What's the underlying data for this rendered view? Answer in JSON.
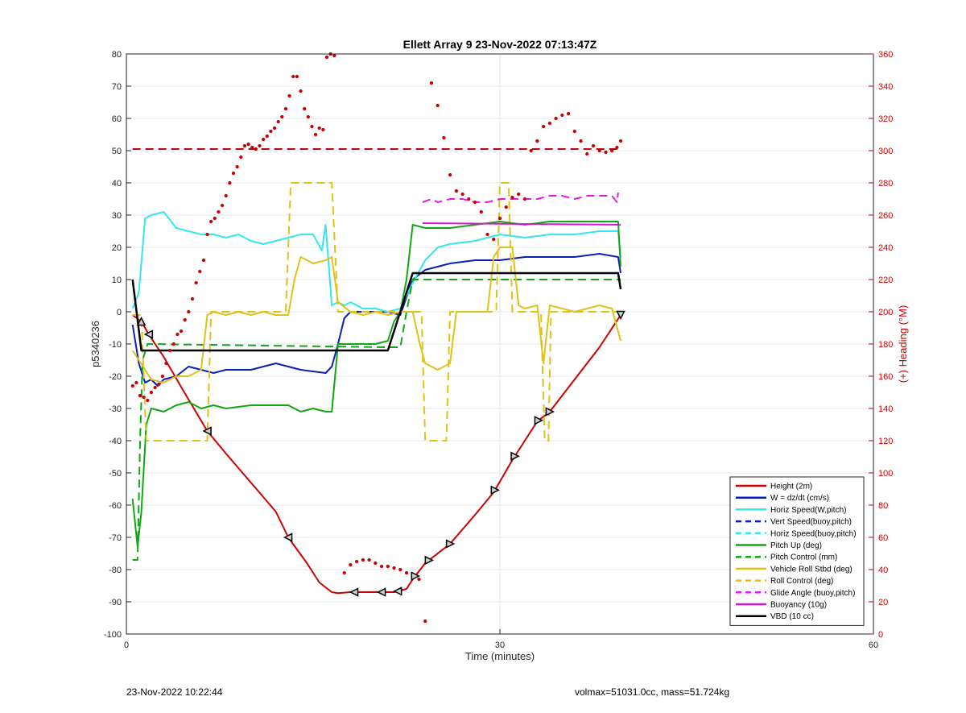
{
  "footer": {
    "left": "23-Nov-2022 10:22:44",
    "right": "volmax=51031.0cc, mass=51.724kg"
  },
  "chart_data": {
    "type": "line",
    "title": "Ellett Array 9 23-Nov-2022 07:13:47Z",
    "xlabel": "Time (minutes)",
    "ylabel": "p5340236",
    "ylabel_right": "(+) Heading (°M)",
    "xlim": [
      0,
      60
    ],
    "ylim": [
      -100,
      80
    ],
    "ylim_right": [
      0,
      360
    ],
    "x_ticks": [
      0,
      30,
      60
    ],
    "y_ticks": [
      -100,
      -90,
      -80,
      -70,
      -60,
      -50,
      -40,
      -30,
      -20,
      -10,
      0,
      10,
      20,
      30,
      40,
      50,
      60,
      70,
      80
    ],
    "y_ticks_right": [
      0,
      20,
      40,
      60,
      80,
      100,
      120,
      140,
      160,
      180,
      200,
      220,
      240,
      260,
      280,
      300,
      320,
      340,
      360
    ],
    "grid": true,
    "legend_position": "bottom-right",
    "series": [
      {
        "name": "Height (2m)",
        "axis": "left",
        "color": "#cc0000",
        "style": "solid",
        "width": 2,
        "x": [
          0.5,
          1.2,
          1.8,
          3,
          4.5,
          6.5,
          8,
          10,
          12,
          13,
          14.5,
          15.5,
          16.5,
          17,
          18,
          20,
          21.5,
          22.5,
          23,
          24,
          26,
          28,
          29.5,
          31,
          33,
          34,
          36,
          38,
          39.7
        ],
        "values": [
          -1,
          -3,
          -7,
          -14,
          -24,
          -37,
          -44,
          -53,
          -62,
          -70,
          -78,
          -84,
          -87,
          -87.3,
          -87,
          -87,
          -87,
          -86,
          -83,
          -78,
          -72,
          -63,
          -56,
          -46,
          -34,
          -31,
          -21,
          -11,
          -1
        ]
      },
      {
        "name": "W = dz/dt (cm/s)",
        "axis": "left",
        "color": "#0a1fb8",
        "style": "solid",
        "width": 2,
        "x": [
          0.5,
          1,
          1.5,
          2,
          2.5,
          3,
          4,
          5,
          6,
          7,
          8,
          10,
          12,
          14,
          16,
          16.5,
          17,
          17.5,
          18,
          19,
          21,
          22,
          23,
          24,
          26,
          28,
          30,
          32,
          34,
          36,
          38,
          39.5,
          39.7
        ],
        "values": [
          -4,
          -16,
          -22,
          -21,
          -23,
          -21,
          -20,
          -17,
          -18,
          -19,
          -18,
          -18,
          -16,
          -18,
          -19,
          -17,
          -10,
          -2,
          0,
          0,
          0,
          -1,
          10,
          13,
          15,
          16,
          16,
          17,
          17,
          17,
          18,
          17,
          12
        ]
      },
      {
        "name": "Horiz Speed(W,pitch)",
        "axis": "left",
        "color": "#33e6ef",
        "style": "solid",
        "width": 2,
        "x": [
          0.5,
          1,
          1.5,
          2,
          3,
          4,
          5,
          6,
          7,
          8,
          9,
          10,
          11,
          12,
          13,
          14,
          15,
          15.7,
          16,
          16.5,
          17,
          17.5,
          18,
          19,
          20,
          21,
          22,
          23,
          24,
          25,
          26,
          28,
          30,
          32,
          34,
          36,
          38,
          39.5,
          39.7
        ],
        "values": [
          1,
          6,
          29,
          30,
          31,
          26,
          25,
          24,
          24,
          23,
          24,
          22,
          21,
          22,
          23,
          24,
          24,
          19,
          27,
          2,
          3,
          2,
          3,
          1,
          1,
          0,
          1,
          9,
          16,
          20,
          21,
          22,
          24,
          23,
          24,
          24,
          25,
          25,
          17
        ]
      },
      {
        "name": "Vert Speed(buoy,pitch)",
        "axis": "left",
        "color": "#0a1fb8",
        "style": "dashed",
        "width": 2,
        "x": [],
        "values": []
      },
      {
        "name": "Horiz Speed(buoy,pitch)",
        "axis": "left",
        "color": "#33e6ef",
        "style": "dashed",
        "width": 2,
        "x": [],
        "values": []
      },
      {
        "name": "Pitch Up (deg)",
        "axis": "left",
        "color": "#12a612",
        "style": "solid",
        "width": 2,
        "x": [
          0.5,
          0.9,
          1.2,
          1.6,
          2,
          3,
          4,
          5,
          6,
          7,
          8,
          10,
          12,
          13,
          14,
          15,
          16,
          16.5,
          17,
          18,
          19,
          20,
          21,
          21.5,
          22,
          22.5,
          23,
          24,
          26,
          28,
          30,
          32,
          34,
          36,
          38,
          39.5,
          39.7
        ],
        "values": [
          -58,
          -73,
          -62,
          -35,
          -30,
          -31,
          -29,
          -28,
          -30,
          -29,
          -30,
          -29,
          -29,
          -29,
          -31,
          -30,
          -31,
          -31,
          -10,
          -10,
          -10,
          -10,
          -9,
          -3,
          0,
          10,
          27,
          26,
          26,
          27,
          28,
          27,
          28,
          28,
          28,
          28,
          14
        ]
      },
      {
        "name": "Pitch Control (mm)",
        "axis": "left",
        "color": "#12a612",
        "style": "dashed",
        "width": 2,
        "x": [
          0.5,
          0.9,
          1.1,
          1.3,
          1.7,
          21,
          22,
          22.5,
          23,
          39.7
        ],
        "values": [
          -77,
          -77,
          -40,
          -15,
          -10,
          -11,
          -11,
          0,
          10,
          10
        ]
      },
      {
        "name": "Vehicle Roll Stbd (deg)",
        "axis": "left",
        "color": "#e0c11a",
        "style": "solid",
        "width": 2,
        "x": [
          0.5,
          1,
          1.5,
          2,
          3,
          4,
          5,
          6,
          6.5,
          7,
          8,
          9,
          10,
          11,
          12,
          13,
          13.5,
          14,
          15,
          16,
          16.5,
          17,
          18,
          19,
          20,
          21,
          22,
          23,
          23.5,
          24,
          25,
          26,
          26.5,
          27,
          28,
          29,
          29.5,
          30,
          31,
          31.5,
          32,
          33,
          33.5,
          34,
          35,
          36,
          37,
          38,
          39,
          39.7
        ],
        "values": [
          -12,
          -15,
          -18,
          -21,
          -22,
          -20,
          -20,
          -18,
          -1,
          0,
          -1,
          0,
          -1,
          0,
          -1,
          -1,
          10,
          17,
          15,
          16,
          17,
          3,
          0,
          -1,
          0,
          -1,
          0,
          0,
          -9,
          -16,
          -18,
          -16,
          0,
          0,
          0,
          0,
          17,
          20,
          20,
          2,
          1,
          2,
          -16,
          2,
          1,
          0,
          1,
          2,
          1,
          -9
        ]
      },
      {
        "name": "Roll Control (deg)",
        "axis": "left",
        "color": "#e0c11a",
        "style": "dashed",
        "width": 2,
        "x": [
          0.5,
          1.2,
          1.6,
          6.5,
          6.8,
          12.8,
          13.2,
          16.5,
          17,
          23.7,
          24,
          25.7,
          26,
          29.7,
          30,
          30.7,
          31,
          33.3,
          33.6,
          33.9,
          34.1,
          39.7
        ],
        "values": [
          -1,
          -1,
          -40,
          -40,
          0,
          0,
          40,
          40,
          0,
          0,
          -40,
          -40,
          0,
          0,
          40,
          40,
          0,
          0,
          -40,
          -40,
          0,
          0
        ]
      },
      {
        "name": "Glide Angle (buoy,pitch)",
        "axis": "left",
        "color": "#e619e6",
        "style": "dashed",
        "width": 2,
        "x": [
          23.8,
          24.5,
          25,
          26,
          27,
          28,
          29,
          30,
          31,
          32,
          33,
          34,
          35,
          36,
          37,
          38,
          39,
          39.4,
          39.5
        ],
        "values": [
          34,
          35,
          34,
          35,
          35,
          34,
          34,
          35,
          35,
          35,
          35,
          36,
          36,
          35,
          36,
          36,
          36,
          34,
          37
        ]
      },
      {
        "name": "Buoyancy (10g)",
        "axis": "left",
        "color": "#d419d4",
        "style": "solid",
        "width": 2,
        "x": [
          23.8,
          39.7
        ],
        "values": [
          27.5,
          27
        ]
      },
      {
        "name": "VBD (10 cc)",
        "axis": "left",
        "color": "#000000",
        "style": "solid",
        "width": 2.5,
        "x": [
          0.5,
          1.2,
          21,
          23,
          39.5,
          39.7
        ],
        "values": [
          10,
          -12,
          -12,
          12,
          12,
          7
        ]
      },
      {
        "name": "",
        "axis": "right",
        "color": "#cc0000",
        "style": "dashed",
        "width": 2,
        "x": [
          0.5,
          39.7
        ],
        "values": [
          301,
          301
        ]
      },
      {
        "name": "",
        "axis": "right",
        "color": "#cc0000",
        "style": "dots",
        "width": 3,
        "x": [
          0.5,
          0.8,
          1.1,
          1.4,
          1.7,
          2.0,
          2.3,
          2.6,
          2.9,
          3.2,
          3.5,
          3.8,
          4.1,
          4.4,
          4.7,
          5.0,
          5.3,
          5.6,
          5.9,
          6.2,
          6.5,
          6.8,
          7.1,
          7.4,
          7.7,
          8.0,
          8.3,
          8.6,
          8.9,
          9.2,
          9.5,
          9.8,
          10.1,
          10.4,
          10.7,
          11.0,
          11.3,
          11.6,
          11.9,
          12.2,
          12.5,
          12.8,
          13.1,
          13.4,
          13.7,
          14.0,
          14.3,
          14.6,
          14.9,
          15.2,
          15.5,
          15.8,
          16.1,
          16.4,
          16.7,
          17.5,
          18,
          18.5,
          19,
          19.5,
          20,
          20.5,
          21,
          21.5,
          22,
          22.5,
          23,
          23.5,
          24,
          24.5,
          25,
          25.5,
          26,
          26.5,
          27,
          27.5,
          28,
          28.5,
          29,
          29.5,
          30,
          30.5,
          31,
          31.5,
          32,
          32.5,
          33,
          33.5,
          34,
          34.5,
          35,
          35.5,
          36,
          36.5,
          37,
          37.5,
          38,
          38.5,
          39,
          39.4,
          39.7
        ],
        "values": [
          154,
          156,
          148,
          147,
          145,
          150,
          153,
          155,
          160,
          168,
          176,
          180,
          186,
          188,
          195,
          200,
          208,
          218,
          225,
          232,
          248,
          256,
          258,
          262,
          266,
          272,
          280,
          286,
          290,
          296,
          303,
          304,
          302,
          301,
          303,
          307,
          309,
          312,
          314,
          318,
          321,
          326,
          334,
          346,
          346,
          337,
          326,
          321,
          315,
          310,
          314,
          313,
          358,
          360,
          359,
          38,
          43,
          45,
          46,
          46,
          44,
          42,
          42,
          41,
          40,
          38,
          36,
          34,
          8,
          342,
          328,
          308,
          285,
          275,
          273,
          270,
          268,
          262,
          248,
          245,
          258,
          265,
          271,
          273,
          270,
          300,
          306,
          315,
          317,
          320,
          322,
          323,
          312,
          306,
          298,
          303,
          300,
          299,
          300,
          302,
          306
        ]
      }
    ]
  }
}
